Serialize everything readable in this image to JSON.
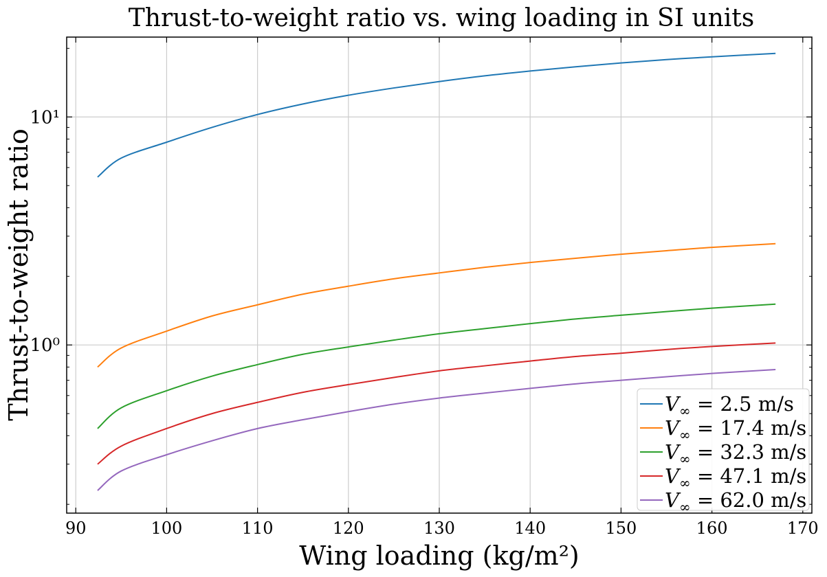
{
  "chart_data": {
    "type": "line",
    "title": "Thrust-to-weight ratio vs. wing loading in SI units",
    "xlabel": "Wing loading (kg/m²)",
    "ylabel": "Thrust-to-weight ratio",
    "x_scale": "linear",
    "y_scale": "log",
    "xlim": [
      89,
      171
    ],
    "ylim": [
      0.183,
      22.4
    ],
    "xticks": [
      90,
      100,
      110,
      120,
      130,
      140,
      150,
      160,
      170
    ],
    "xtick_labels": [
      "90",
      "100",
      "110",
      "120",
      "130",
      "140",
      "150",
      "160",
      "170"
    ],
    "yticks": [
      10,
      1
    ],
    "ytick_labels": [
      "10¹",
      "10⁰"
    ],
    "grid": true,
    "legend_position": "lower-right",
    "x": [
      92.4,
      95,
      100,
      105,
      110,
      115,
      120,
      125,
      130,
      135,
      140,
      145,
      150,
      155,
      160,
      167
    ],
    "series": [
      {
        "name": "V∞ = 2.5 m/s",
        "color": "#1f77b4",
        "values": [
          5.45,
          6.6,
          7.75,
          9.0,
          10.25,
          11.4,
          12.45,
          13.4,
          14.3,
          15.15,
          15.9,
          16.6,
          17.25,
          17.85,
          18.35,
          19.0
        ]
      },
      {
        "name": "V∞ = 17.4 m/s",
        "color": "#ff7f0e",
        "values": [
          0.8,
          0.97,
          1.15,
          1.34,
          1.5,
          1.67,
          1.81,
          1.95,
          2.07,
          2.19,
          2.3,
          2.4,
          2.5,
          2.59,
          2.68,
          2.78
        ]
      },
      {
        "name": "V∞ = 32.3 m/s",
        "color": "#2ca02c",
        "values": [
          0.43,
          0.53,
          0.63,
          0.73,
          0.82,
          0.91,
          0.98,
          1.05,
          1.12,
          1.18,
          1.24,
          1.3,
          1.35,
          1.4,
          1.45,
          1.51
        ]
      },
      {
        "name": "V∞ = 47.1 m/s",
        "color": "#d62728",
        "values": [
          0.3,
          0.36,
          0.43,
          0.5,
          0.56,
          0.62,
          0.67,
          0.72,
          0.77,
          0.81,
          0.85,
          0.89,
          0.92,
          0.955,
          0.985,
          1.02
        ]
      },
      {
        "name": "V∞ = 62.0 m/s",
        "color": "#9467bd",
        "values": [
          0.23,
          0.28,
          0.33,
          0.38,
          0.43,
          0.47,
          0.51,
          0.55,
          0.585,
          0.615,
          0.645,
          0.675,
          0.7,
          0.725,
          0.75,
          0.78
        ]
      }
    ]
  },
  "legend": {
    "items": [
      {
        "var": "V",
        "sub": "∞",
        "rest": " = 2.5 m/s"
      },
      {
        "var": "V",
        "sub": "∞",
        "rest": " = 17.4 m/s"
      },
      {
        "var": "V",
        "sub": "∞",
        "rest": " = 32.3 m/s"
      },
      {
        "var": "V",
        "sub": "∞",
        "rest": " = 47.1 m/s"
      },
      {
        "var": "V",
        "sub": "∞",
        "rest": " = 62.0 m/s"
      }
    ]
  },
  "colors": {
    "axis": "#000000",
    "grid": "#cccccc",
    "legend_border": "#cccccc"
  }
}
